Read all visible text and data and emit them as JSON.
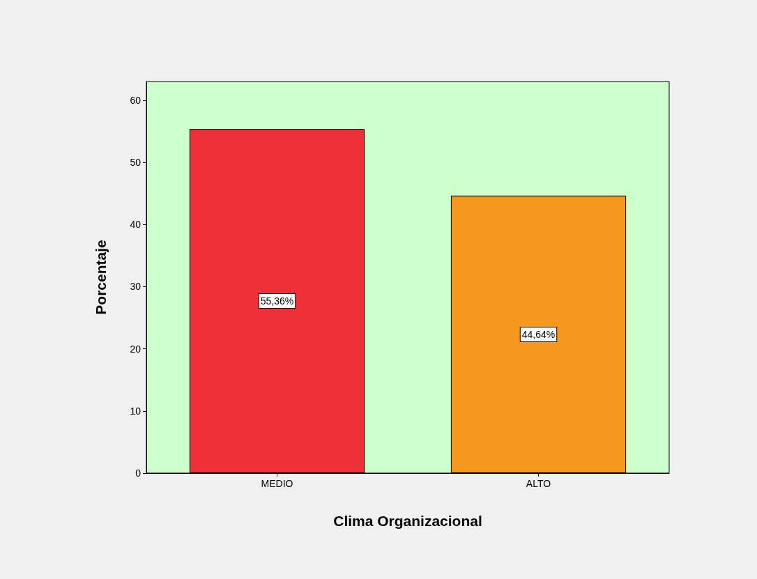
{
  "chart_data": {
    "type": "bar",
    "xlabel": "Clima Organizacional",
    "ylabel": "Porcentaje",
    "categories": [
      "MEDIO",
      "ALTO"
    ],
    "values": [
      55.36,
      44.64
    ],
    "colors": [
      "#f03039",
      "#f7981e"
    ],
    "value_labels": [
      "55,36%",
      "44,64%"
    ],
    "ylim": [
      0,
      63
    ],
    "yticks": [
      0,
      10,
      20,
      30,
      40,
      50,
      60
    ],
    "grid": false
  }
}
